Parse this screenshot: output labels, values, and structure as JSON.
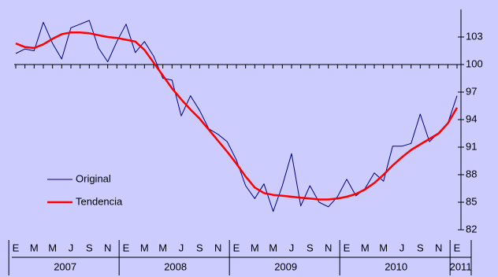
{
  "chart_data": {
    "type": "line",
    "categories": [
      "E",
      null,
      "M",
      null,
      "M",
      null,
      "J",
      null,
      "S",
      null,
      "N",
      null,
      "E",
      null,
      "M",
      null,
      "M",
      null,
      "J",
      null,
      "S",
      null,
      "N",
      null,
      "E",
      null,
      "M",
      null,
      "M",
      null,
      "J",
      null,
      "S",
      null,
      "N",
      null,
      "E",
      null,
      "M",
      null,
      "M",
      null,
      "J",
      null,
      "S",
      null,
      "N",
      null,
      "E"
    ],
    "years": [
      "2007",
      "2008",
      "2009",
      "2010",
      "2011"
    ],
    "series": [
      {
        "name": "Original",
        "color": "#000080",
        "values": [
          101.2,
          101.7,
          101.5,
          104.6,
          102.3,
          100.6,
          104.0,
          104.4,
          104.8,
          101.8,
          100.3,
          102.5,
          104.4,
          101.3,
          102.5,
          100.9,
          98.5,
          98.3,
          94.4,
          96.6,
          95.0,
          93.0,
          92.4,
          91.6,
          89.6,
          86.8,
          85.4,
          87.0,
          84.0,
          86.8,
          90.3,
          84.6,
          86.8,
          85.0,
          84.5,
          85.6,
          87.5,
          85.7,
          86.5,
          88.2,
          87.3,
          91.1,
          91.1,
          91.4,
          94.6,
          91.6,
          92.6,
          93.6,
          96.6
        ]
      },
      {
        "name": "Tendencia",
        "color": "#ff0000",
        "values": [
          102.3,
          101.9,
          101.8,
          102.2,
          102.8,
          103.3,
          103.5,
          103.5,
          103.4,
          103.2,
          103.0,
          102.9,
          102.7,
          102.5,
          101.6,
          100.2,
          98.8,
          97.4,
          96.2,
          95.1,
          94.1,
          92.9,
          91.7,
          90.5,
          89.2,
          87.8,
          86.6,
          86.0,
          85.8,
          85.7,
          85.6,
          85.5,
          85.4,
          85.3,
          85.3,
          85.4,
          85.6,
          85.9,
          86.4,
          87.1,
          88.0,
          89.0,
          89.9,
          90.7,
          91.3,
          91.9,
          92.5,
          93.6,
          95.3
        ]
      }
    ],
    "ylim": [
      82,
      106
    ],
    "yticks": [
      82,
      85,
      88,
      91,
      94,
      97,
      100,
      103
    ],
    "x_axis_at": 100
  }
}
